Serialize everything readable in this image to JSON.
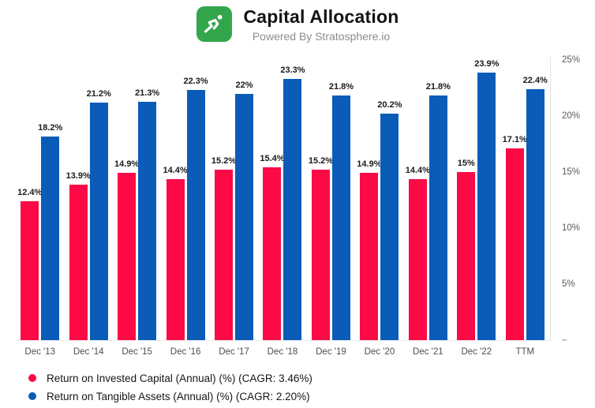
{
  "header": {
    "title": "Capital Allocation",
    "subtitle": "Powered By Stratosphere.io",
    "logo_color": "#33A64C"
  },
  "chart_data": {
    "type": "bar",
    "title": "Capital Allocation",
    "subtitle": "Powered By Stratosphere.io",
    "categories": [
      "Dec '13",
      "Dec '14",
      "Dec '15",
      "Dec '16",
      "Dec '17",
      "Dec '18",
      "Dec '19",
      "Dec '20",
      "Dec '21",
      "Dec '22",
      "TTM"
    ],
    "series": [
      {
        "id": "roic",
        "name": "Return on Invested Capital (Annual) (%) (CAGR: 3.46%)",
        "color": "#FB0A46",
        "values": [
          12.4,
          13.9,
          14.9,
          14.4,
          15.2,
          15.4,
          15.2,
          14.9,
          14.4,
          15,
          17.1
        ],
        "labels": [
          "12.4%",
          "13.9%",
          "14.9%",
          "14.4%",
          "15.2%",
          "15.4%",
          "15.2%",
          "14.9%",
          "14.4%",
          "15%",
          "17.1%"
        ]
      },
      {
        "id": "rota",
        "name": "Return on Tangible Assets (Annual) (%) (CAGR: 2.20%)",
        "color": "#0A5CB8",
        "values": [
          18.2,
          21.2,
          21.3,
          22.3,
          22,
          23.3,
          21.8,
          20.2,
          21.8,
          23.9,
          22.4
        ],
        "labels": [
          "18.2%",
          "21.2%",
          "21.3%",
          "22.3%",
          "22%",
          "23.3%",
          "21.8%",
          "20.2%",
          "21.8%",
          "23.9%",
          "22.4%"
        ]
      }
    ],
    "ylim": [
      0,
      25
    ],
    "yticks": [
      "25%",
      "20%",
      "15%",
      "10%",
      "5%",
      "–"
    ],
    "ytick_values": [
      25,
      20,
      15,
      10,
      5,
      0
    ],
    "grid": false,
    "legend_position": "bottom-left",
    "value_labels_shown": true
  }
}
